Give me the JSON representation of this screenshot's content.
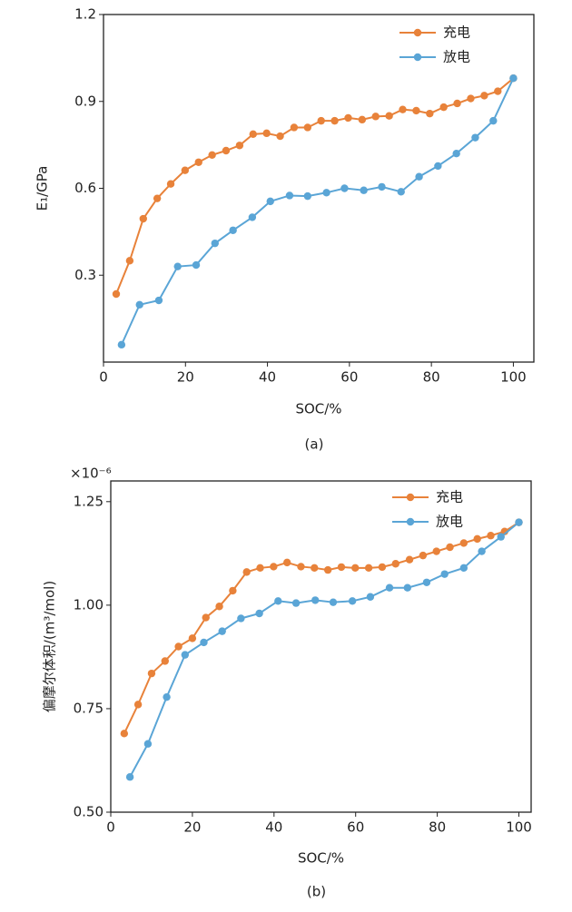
{
  "chart_data": [
    {
      "type": "line",
      "ylabel": "E₁/GPa",
      "xlabel": "SOC/%",
      "caption": "(a)",
      "legend": "upper right",
      "xlim": [
        0,
        105
      ],
      "ylim": [
        0,
        1.2
      ],
      "xticks": [
        0,
        20,
        40,
        60,
        80,
        100
      ],
      "yticks": [
        0.3,
        0.6,
        0.9,
        1.2
      ],
      "series": [
        {
          "name": "充电",
          "color": "#e8823a",
          "x": [
            3.1,
            6.4,
            9.7,
            13.1,
            16.4,
            19.9,
            23.2,
            26.5,
            29.9,
            33.2,
            36.5,
            39.8,
            43.1,
            46.5,
            49.8,
            53.1,
            56.4,
            59.7,
            63.1,
            66.4,
            69.7,
            73,
            76.3,
            79.6,
            83,
            86.3,
            89.6,
            92.9,
            96.2,
            100
          ],
          "values": [
            0.235,
            0.35,
            0.495,
            0.565,
            0.615,
            0.662,
            0.69,
            0.715,
            0.73,
            0.748,
            0.787,
            0.79,
            0.78,
            0.81,
            0.81,
            0.833,
            0.833,
            0.843,
            0.837,
            0.848,
            0.85,
            0.872,
            0.868,
            0.858,
            0.88,
            0.893,
            0.91,
            0.92,
            0.935,
            0.98
          ]
        },
        {
          "name": "放电",
          "color": "#5aa5d6",
          "x": [
            4.4,
            8.8,
            13.5,
            18.1,
            22.6,
            27.2,
            31.6,
            36.3,
            40.7,
            45.4,
            49.8,
            54.4,
            58.8,
            63.5,
            67.9,
            72.6,
            77,
            81.6,
            86.1,
            90.7,
            95.1,
            100
          ],
          "values": [
            0.06,
            0.198,
            0.213,
            0.33,
            0.335,
            0.41,
            0.455,
            0.5,
            0.555,
            0.575,
            0.573,
            0.585,
            0.6,
            0.593,
            0.605,
            0.588,
            0.64,
            0.677,
            0.72,
            0.775,
            0.833,
            0.98
          ]
        }
      ]
    },
    {
      "type": "line",
      "ylabel": "偏摩尔体积/(m³/mol)",
      "xlabel": "SOC/%",
      "caption": "(b)",
      "legend": "upper right",
      "y_offset_label": "×10⁻⁶",
      "xlim": [
        0,
        103
      ],
      "ylim": [
        0.5,
        1.3
      ],
      "xticks": [
        0,
        20,
        40,
        60,
        80,
        100
      ],
      "yticks": [
        {
          "value": 0.5,
          "label": "0.50"
        },
        0.75,
        {
          "value": 1,
          "label": "1.00"
        },
        1.25
      ],
      "series": [
        {
          "name": "充电",
          "color": "#e8823a",
          "x": [
            3.3,
            6.7,
            10,
            13.3,
            16.6,
            20,
            23.3,
            26.6,
            29.9,
            33.3,
            36.6,
            39.9,
            43.2,
            46.6,
            49.9,
            53.2,
            56.5,
            59.9,
            63.2,
            66.5,
            69.8,
            73.2,
            76.5,
            79.8,
            83.1,
            86.5,
            89.8,
            93.1,
            96.5,
            100
          ],
          "values": [
            0.69,
            0.76,
            0.835,
            0.865,
            0.9,
            0.92,
            0.97,
            0.997,
            1.035,
            1.08,
            1.09,
            1.093,
            1.103,
            1.093,
            1.09,
            1.085,
            1.092,
            1.09,
            1.09,
            1.092,
            1.1,
            1.11,
            1.12,
            1.13,
            1.14,
            1.15,
            1.16,
            1.168,
            1.178,
            1.2
          ]
        },
        {
          "name": "放电",
          "color": "#5aa5d6",
          "x": [
            4.7,
            9.1,
            13.7,
            18.2,
            22.8,
            27.3,
            31.9,
            36.4,
            41,
            45.4,
            50.1,
            54.5,
            59.2,
            63.6,
            68.3,
            72.7,
            77.4,
            81.8,
            86.5,
            90.9,
            95.6,
            100
          ],
          "values": [
            0.585,
            0.665,
            0.778,
            0.88,
            0.91,
            0.937,
            0.968,
            0.98,
            1.01,
            1.005,
            1.012,
            1.007,
            1.01,
            1.02,
            1.042,
            1.042,
            1.055,
            1.075,
            1.09,
            1.13,
            1.165,
            1.2
          ]
        }
      ]
    }
  ]
}
